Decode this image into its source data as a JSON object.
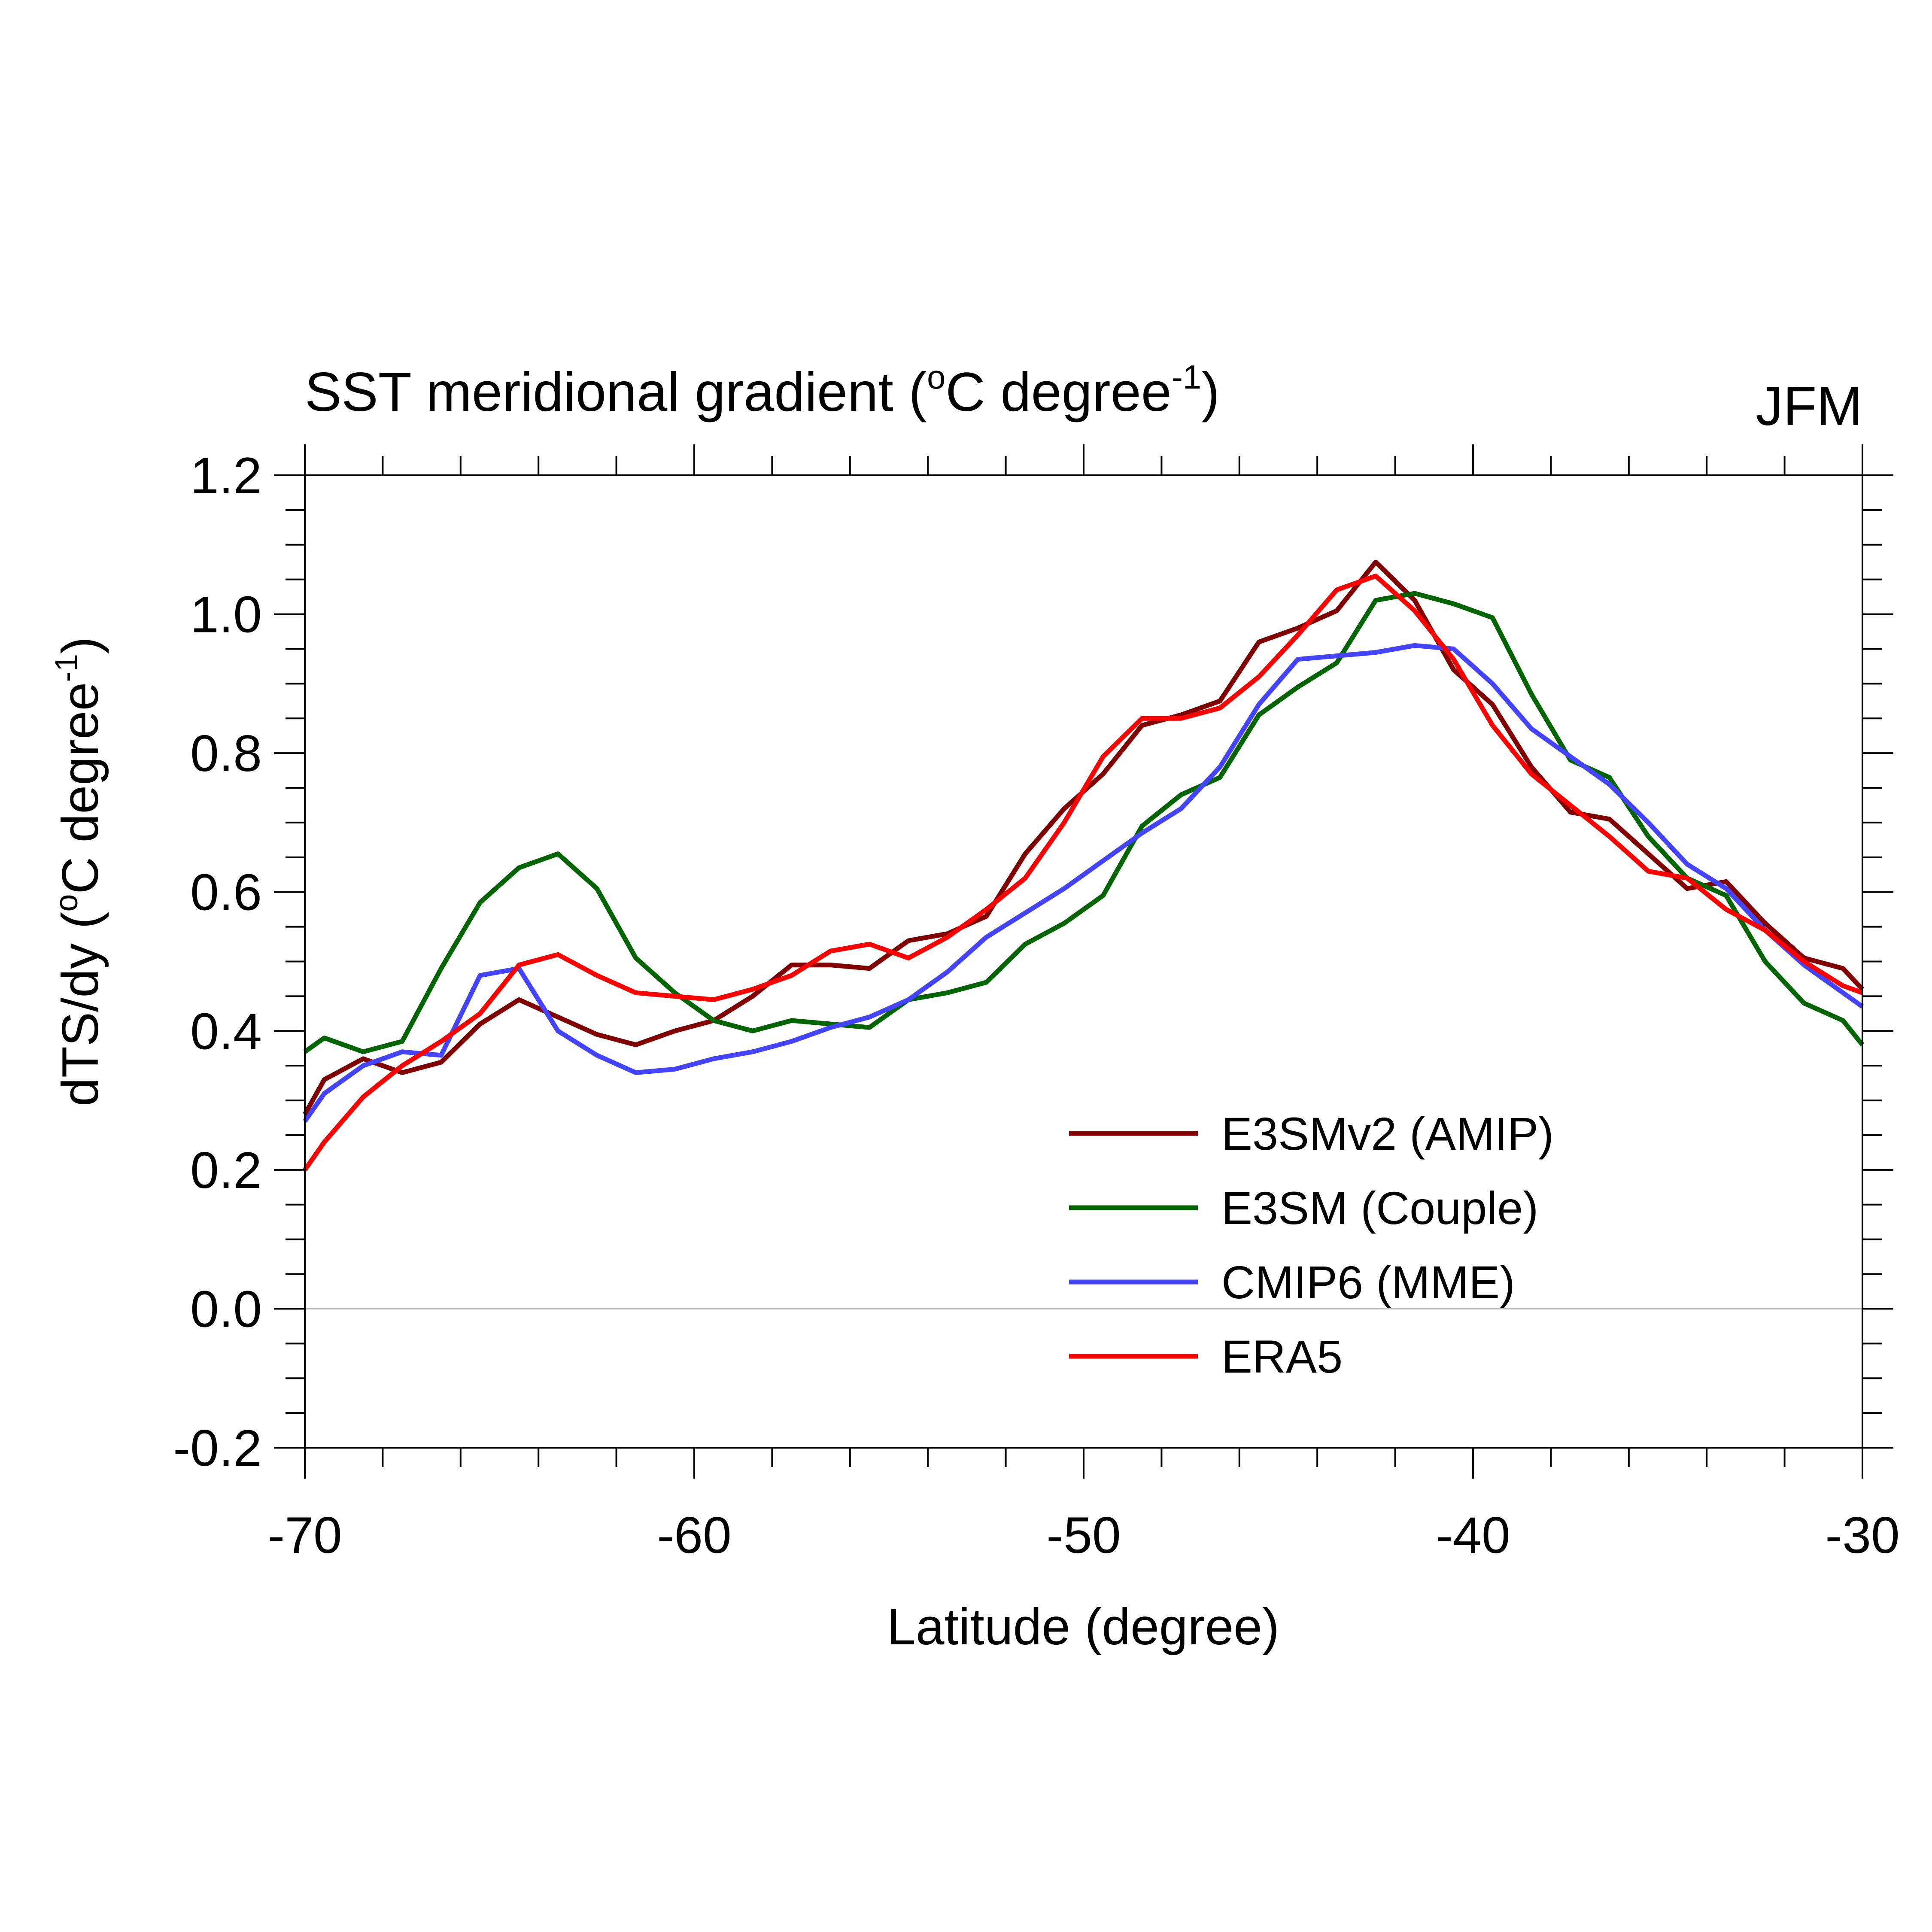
{
  "chart_data": {
    "type": "line",
    "title": "SST meridional gradient (",
    "title_unit": "C degree",
    "title_close": ")",
    "title_superscript_deg": "o",
    "title_superscript_exp": "-1",
    "season_label": "JFM",
    "xlabel": "Latitude (degree)",
    "ylabel": "dTS/dy (",
    "ylabel_unit": "C degree",
    "ylabel_close": ")",
    "ylabel_superscript_deg": "o",
    "ylabel_superscript_exp": "-1",
    "xlim": [
      -70,
      -30
    ],
    "ylim": [
      -0.2,
      1.2
    ],
    "x_ticks": [
      -70,
      -60,
      -50,
      -40,
      -30
    ],
    "x_tick_labels": [
      "-70",
      "-60",
      "-50",
      "-40",
      "-30"
    ],
    "y_ticks": [
      -0.2,
      0.0,
      0.2,
      0.4,
      0.6,
      0.8,
      1.0,
      1.2
    ],
    "y_tick_labels": [
      "-0.2",
      "0.0",
      "0.2",
      "0.4",
      "0.6",
      "0.8",
      "1.0",
      "1.2"
    ],
    "zero_line": true,
    "legend_position": "lower-right",
    "x": [
      -70,
      -69.5,
      -68.5,
      -67.5,
      -66.5,
      -65.5,
      -64.5,
      -63.5,
      -62.5,
      -61.5,
      -60.5,
      -59.5,
      -58.5,
      -57.5,
      -56.5,
      -55.5,
      -54.5,
      -53.5,
      -52.5,
      -51.5,
      -50.5,
      -49.5,
      -48.5,
      -47.5,
      -46.5,
      -45.5,
      -44.5,
      -43.5,
      -42.5,
      -41.5,
      -40.5,
      -39.5,
      -38.5,
      -37.5,
      -36.5,
      -35.5,
      -34.5,
      -33.5,
      -32.5,
      -31.5,
      -30.5,
      -30
    ],
    "series": [
      {
        "name": "E3SMv2 (AMIP)",
        "color": "#800000",
        "values": [
          0.28,
          0.33,
          0.36,
          0.34,
          0.355,
          0.41,
          0.445,
          0.42,
          0.395,
          0.38,
          0.4,
          0.415,
          0.45,
          0.495,
          0.495,
          0.49,
          0.53,
          0.54,
          0.565,
          0.655,
          0.72,
          0.77,
          0.84,
          0.855,
          0.875,
          0.96,
          0.98,
          1.005,
          1.075,
          1.02,
          0.92,
          0.87,
          0.78,
          0.715,
          0.705,
          0.655,
          0.605,
          0.615,
          0.555,
          0.505,
          0.49,
          0.46
        ]
      },
      {
        "name": "E3SM (Couple)",
        "color": "#006400",
        "values": [
          0.37,
          0.39,
          0.37,
          0.385,
          0.49,
          0.585,
          0.635,
          0.655,
          0.605,
          0.505,
          0.455,
          0.415,
          0.4,
          0.415,
          0.41,
          0.405,
          0.445,
          0.455,
          0.47,
          0.525,
          0.555,
          0.595,
          0.695,
          0.74,
          0.765,
          0.855,
          0.895,
          0.93,
          1.02,
          1.03,
          1.015,
          0.995,
          0.885,
          0.79,
          0.765,
          0.68,
          0.62,
          0.595,
          0.5,
          0.44,
          0.415,
          0.38
        ]
      },
      {
        "name": "CMIP6 (MME)",
        "color": "#4444ff",
        "values": [
          0.27,
          0.31,
          0.35,
          0.37,
          0.365,
          0.48,
          0.49,
          0.4,
          0.365,
          0.34,
          0.345,
          0.36,
          0.37,
          0.385,
          0.405,
          0.42,
          0.445,
          0.485,
          0.535,
          0.57,
          0.605,
          0.645,
          0.685,
          0.72,
          0.78,
          0.87,
          0.935,
          0.94,
          0.945,
          0.955,
          0.95,
          0.9,
          0.835,
          0.795,
          0.755,
          0.7,
          0.64,
          0.605,
          0.545,
          0.495,
          0.455,
          0.435
        ]
      },
      {
        "name": "ERA5",
        "color": "#ff0000",
        "values": [
          0.2,
          0.24,
          0.305,
          0.35,
          0.385,
          0.425,
          0.495,
          0.51,
          0.48,
          0.455,
          0.45,
          0.445,
          0.46,
          0.48,
          0.515,
          0.525,
          0.505,
          0.535,
          0.575,
          0.62,
          0.7,
          0.795,
          0.85,
          0.85,
          0.865,
          0.91,
          0.97,
          1.035,
          1.055,
          1.005,
          0.935,
          0.84,
          0.77,
          0.725,
          0.68,
          0.63,
          0.62,
          0.575,
          0.545,
          0.5,
          0.465,
          0.455
        ]
      }
    ]
  }
}
